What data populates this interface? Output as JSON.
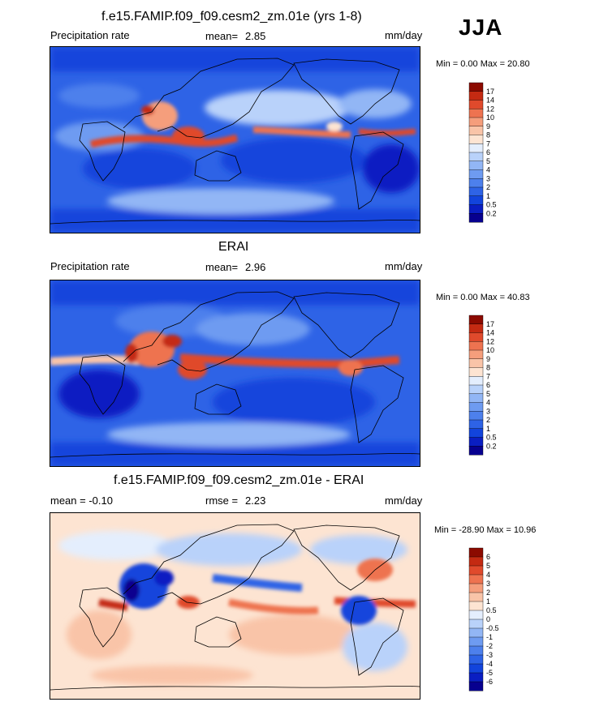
{
  "season": "JJA",
  "units": "mm/day",
  "panels": [
    {
      "title": "f.e15.FAMIP.f09_f09.cesm2_zm.01e (yrs 1-8)",
      "left_label": "Precipitation rate",
      "mean_label": "mean=",
      "mean_value": "2.85",
      "minmax": "Min =   0.00 Max =  20.80"
    },
    {
      "title": "ERAI",
      "left_label": "Precipitation rate",
      "mean_label": "mean=",
      "mean_value": "2.96",
      "minmax": "Min =   0.00 Max =  40.83"
    },
    {
      "title": "f.e15.FAMIP.f09_f09.cesm2_zm.01e - ERAI",
      "left_label": "mean =  -0.10",
      "mean_label": "rmse =",
      "mean_value": "2.23",
      "minmax": "Min = -28.90 Max =  10.96"
    }
  ],
  "chart_data": [
    {
      "type": "heatmap",
      "title": "f.e15.FAMIP.f09_f09.cesm2_zm.01e (yrs 1-8)",
      "variable": "Precipitation rate",
      "units": "mm/day",
      "mean": 2.85,
      "min": 0.0,
      "max": 20.8,
      "colorbar_levels": [
        "0.2",
        "0.5",
        "1",
        "2",
        "3",
        "4",
        "5",
        "6",
        "7",
        "8",
        "9",
        "10",
        "12",
        "14",
        "17"
      ],
      "colorbar_colors": [
        "#07008f",
        "#0a1ec2",
        "#1244dc",
        "#2e63e6",
        "#4d80ec",
        "#6e9bf1",
        "#92b6f5",
        "#b9d2fa",
        "#e4eefd",
        "#fde4d2",
        "#f9c4a8",
        "#f59e7c",
        "#ee7350",
        "#e04a2c",
        "#c42a12",
        "#8c0a00"
      ],
      "grid": false
    },
    {
      "type": "heatmap",
      "title": "ERAI",
      "variable": "Precipitation rate",
      "units": "mm/day",
      "mean": 2.96,
      "min": 0.0,
      "max": 40.83,
      "colorbar_levels": [
        "0.2",
        "0.5",
        "1",
        "2",
        "3",
        "4",
        "5",
        "6",
        "7",
        "8",
        "9",
        "10",
        "12",
        "14",
        "17"
      ],
      "colorbar_colors": [
        "#07008f",
        "#0a1ec2",
        "#1244dc",
        "#2e63e6",
        "#4d80ec",
        "#6e9bf1",
        "#92b6f5",
        "#b9d2fa",
        "#e4eefd",
        "#fde4d2",
        "#f9c4a8",
        "#f59e7c",
        "#ee7350",
        "#e04a2c",
        "#c42a12",
        "#8c0a00"
      ],
      "grid": false
    },
    {
      "type": "heatmap",
      "title": "f.e15.FAMIP.f09_f09.cesm2_zm.01e - ERAI",
      "units": "mm/day",
      "mean": -0.1,
      "rmse": 2.23,
      "min": -28.9,
      "max": 10.96,
      "colorbar_levels": [
        "-6",
        "-5",
        "-4",
        "-3",
        "-2",
        "-1",
        "-0.5",
        "0",
        "0.5",
        "1",
        "2",
        "3",
        "4",
        "5",
        "6"
      ],
      "colorbar_colors": [
        "#07008f",
        "#0a1ec2",
        "#1244dc",
        "#2e63e6",
        "#4d80ec",
        "#6e9bf1",
        "#92b6f5",
        "#b9d2fa",
        "#e4eefd",
        "#fde4d2",
        "#f9c4a8",
        "#f59e7c",
        "#ee7350",
        "#e04a2c",
        "#c42a12",
        "#8c0a00"
      ],
      "grid": false
    }
  ]
}
